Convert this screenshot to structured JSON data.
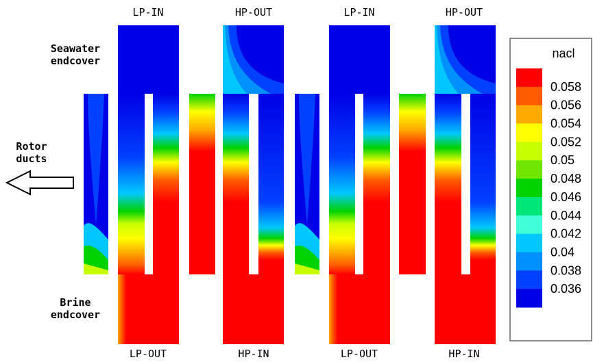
{
  "port_labels": {
    "top": [
      "LP-IN",
      "HP-OUT",
      "LP-IN",
      "HP-OUT"
    ],
    "bottom": [
      "LP-OUT",
      "HP-IN",
      "LP-OUT",
      "HP-IN"
    ]
  },
  "side_labels": {
    "seawater_line1": "Seawater",
    "seawater_line2": "endcover",
    "rotor_line1": "Rotor",
    "rotor_line2": "ducts",
    "brine_line1": "Brine",
    "brine_line2": "endcover"
  },
  "legend": {
    "title": "nacl",
    "levels": [
      "0.058",
      "0.056",
      "0.054",
      "0.052",
      "0.05",
      "0.048",
      "0.046",
      "0.044",
      "0.042",
      "0.04",
      "0.038",
      "0.036"
    ],
    "colors": [
      "#ff0000",
      "#ff5a00",
      "#ffaa00",
      "#ffff00",
      "#c8ff00",
      "#6ee600",
      "#00d200",
      "#00e678",
      "#40ffd8",
      "#00c8ff",
      "#0090ff",
      "#0040ff",
      "#0000e6"
    ]
  },
  "arrow_icon": "left-arrow-outline-icon"
}
